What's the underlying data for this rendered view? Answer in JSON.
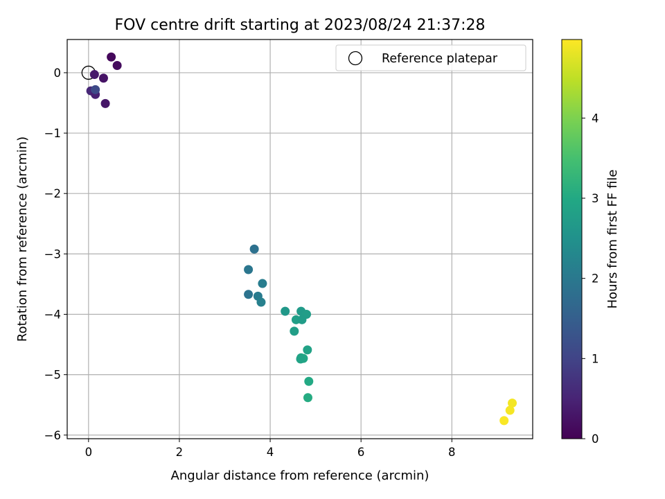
{
  "chart_data": {
    "type": "scatter",
    "title": "FOV centre drift starting at 2023/08/24 21:37:28",
    "xlabel": "Angular distance from reference (arcmin)",
    "ylabel": "Rotation from reference (arcmin)",
    "xlim": [
      -0.47,
      9.78
    ],
    "ylim": [
      -6.06,
      0.55
    ],
    "xticks": [
      0,
      2,
      4,
      6,
      8
    ],
    "yticks": [
      0,
      -1,
      -2,
      -3,
      -4,
      -5,
      -6
    ],
    "xtick_labels": [
      "0",
      "2",
      "4",
      "6",
      "8"
    ],
    "ytick_labels": [
      "0",
      "−1",
      "−2",
      "−3",
      "−4",
      "−5",
      "−6"
    ],
    "grid": true,
    "legend": {
      "placement": "top-right",
      "entries": [
        "Reference platepar"
      ]
    },
    "reference_point": {
      "x": 0,
      "y": 0
    },
    "colorbar": {
      "label": "Hours from first FF file",
      "min": 0,
      "max": 4.98,
      "ticks": [
        0,
        1,
        2,
        3,
        4
      ],
      "tick_labels": [
        "0",
        "1",
        "2",
        "3",
        "4"
      ],
      "colormap": "viridis"
    },
    "points": [
      {
        "x": 0.5,
        "y": 0.26,
        "t": 0.1
      },
      {
        "x": 0.63,
        "y": 0.12,
        "t": 0.15
      },
      {
        "x": 0.33,
        "y": -0.09,
        "t": 0.25
      },
      {
        "x": 0.13,
        "y": -0.03,
        "t": 0.35
      },
      {
        "x": 0.37,
        "y": -0.51,
        "t": 0.3
      },
      {
        "x": 0.05,
        "y": -0.3,
        "t": 0.55
      },
      {
        "x": 0.15,
        "y": -0.36,
        "t": 0.45
      },
      {
        "x": 0.15,
        "y": -0.28,
        "t": 1.1
      },
      {
        "x": 3.65,
        "y": -2.92,
        "t": 1.85
      },
      {
        "x": 3.52,
        "y": -3.26,
        "t": 1.95
      },
      {
        "x": 3.83,
        "y": -3.49,
        "t": 2.1
      },
      {
        "x": 3.52,
        "y": -3.67,
        "t": 1.9
      },
      {
        "x": 3.73,
        "y": -3.7,
        "t": 2.05
      },
      {
        "x": 3.8,
        "y": -3.8,
        "t": 2.15
      },
      {
        "x": 4.33,
        "y": -3.95,
        "t": 2.65
      },
      {
        "x": 4.68,
        "y": -3.95,
        "t": 2.7
      },
      {
        "x": 4.8,
        "y": -4.0,
        "t": 2.75
      },
      {
        "x": 4.57,
        "y": -4.09,
        "t": 2.8
      },
      {
        "x": 4.7,
        "y": -4.09,
        "t": 2.72
      },
      {
        "x": 4.53,
        "y": -4.28,
        "t": 2.78
      },
      {
        "x": 4.82,
        "y": -4.59,
        "t": 2.85
      },
      {
        "x": 4.68,
        "y": -4.72,
        "t": 2.9
      },
      {
        "x": 4.73,
        "y": -4.73,
        "t": 2.95
      },
      {
        "x": 4.67,
        "y": -4.74,
        "t": 2.88
      },
      {
        "x": 4.85,
        "y": -5.11,
        "t": 3.0
      },
      {
        "x": 4.83,
        "y": -5.38,
        "t": 3.05
      },
      {
        "x": 9.33,
        "y": -5.47,
        "t": 4.9
      },
      {
        "x": 9.28,
        "y": -5.59,
        "t": 4.92
      },
      {
        "x": 9.15,
        "y": -5.76,
        "t": 4.95
      }
    ],
    "colors": {
      "grid": "#b0b0b0",
      "axes": "#000000",
      "legend_border": "#cccccc"
    }
  }
}
